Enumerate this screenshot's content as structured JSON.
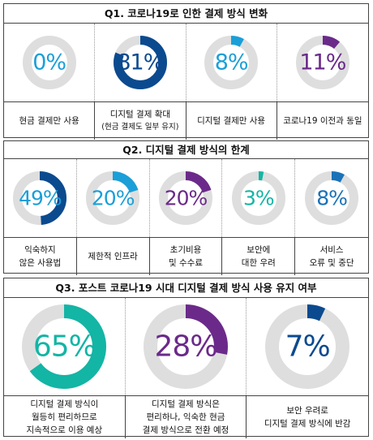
{
  "sections": [
    {
      "title": "Q1. 코로나19로 인한 결제 방식 변화",
      "items": [
        {
          "value": 0,
          "pct": "0%",
          "color": "#1a9fd8",
          "text_color": "#1a9fd8",
          "label": [
            "현금 결제만 사용"
          ]
        },
        {
          "value": 81,
          "pct": "81%",
          "color": "#0b4a8f",
          "text_color": "#0b4a8f",
          "label": [
            "디지털 결제 확대",
            "(현금 결제도 일부 유지)"
          ]
        },
        {
          "value": 8,
          "pct": "8%",
          "color": "#1a9fd8",
          "text_color": "#1a9fd8",
          "label": [
            "디지털 결제만 사용"
          ]
        },
        {
          "value": 11,
          "pct": "11%",
          "color": "#6b2a8a",
          "text_color": "#6b2a8a",
          "label": [
            "코로나19 이전과 동일"
          ]
        }
      ]
    },
    {
      "title": "Q2. 디지털 결제 방식의 한계",
      "items": [
        {
          "value": 49,
          "pct": "49%",
          "color": "#0b4a8f",
          "text_color": "#1a9fd8",
          "label": [
            "익숙하지",
            "않은 사용법"
          ]
        },
        {
          "value": 20,
          "pct": "20%",
          "color": "#1a9fd8",
          "text_color": "#1a9fd8",
          "label": [
            "제한적 인프라"
          ]
        },
        {
          "value": 20,
          "pct": "20%",
          "color": "#6b2a8a",
          "text_color": "#6b2a8a",
          "label": [
            "초기비용",
            "및 수수료"
          ]
        },
        {
          "value": 3,
          "pct": "3%",
          "color": "#13b5a5",
          "text_color": "#13b5a5",
          "label": [
            "보안에",
            "대한 우려"
          ]
        },
        {
          "value": 8,
          "pct": "8%",
          "color": "#1a72b8",
          "text_color": "#1a72b8",
          "label": [
            "서비스",
            "오류 및 중단"
          ]
        }
      ]
    },
    {
      "title": "Q3. 포스트 코로나19 시대 디지털 결제 방식 사용 유지 여부",
      "items": [
        {
          "value": 65,
          "pct": "65%",
          "color": "#13b5a5",
          "text_color": "#13b5a5",
          "label": [
            "디지털 결제 방식이",
            "월등히 편리하므로",
            "지속적으로 이용 예상"
          ]
        },
        {
          "value": 28,
          "pct": "28%",
          "color": "#6b2a8a",
          "text_color": "#6b2a8a",
          "label": [
            "디지털 결제 방식은",
            "편리하나, 익숙한 현금",
            "결제 방식으로 전환 예정"
          ]
        },
        {
          "value": 7,
          "pct": "7%",
          "color": "#0b4a8f",
          "text_color": "#0b4a8f",
          "label": [
            "보안 우려로",
            "디지털 결제 방식에 반감"
          ]
        }
      ]
    }
  ],
  "colors": {
    "track": "#dedede"
  },
  "chart_data": [
    {
      "type": "pie",
      "title": "Q1. 코로나19로 인한 결제 방식 변화",
      "categories": [
        "현금 결제만 사용",
        "디지털 결제 확대 (현금 결제도 일부 유지)",
        "디지털 결제만 사용",
        "코로나19 이전과 동일"
      ],
      "values": [
        0,
        81,
        8,
        11
      ]
    },
    {
      "type": "pie",
      "title": "Q2. 디지털 결제 방식의 한계",
      "categories": [
        "익숙하지 않은 사용법",
        "제한적 인프라",
        "초기비용 및 수수료",
        "보안에 대한 우려",
        "서비스 오류 및 중단"
      ],
      "values": [
        49,
        20,
        20,
        3,
        8
      ]
    },
    {
      "type": "pie",
      "title": "Q3. 포스트 코로나19 시대 디지털 결제 방식 사용 유지 여부",
      "categories": [
        "디지털 결제 방식이 월등히 편리하므로 지속적으로 이용 예상",
        "디지털 결제 방식은 편리하나, 익숙한 현금 결제 방식으로 전환 예정",
        "보안 우려로 디지털 결제 방식에 반감"
      ],
      "values": [
        65,
        28,
        7
      ]
    }
  ]
}
